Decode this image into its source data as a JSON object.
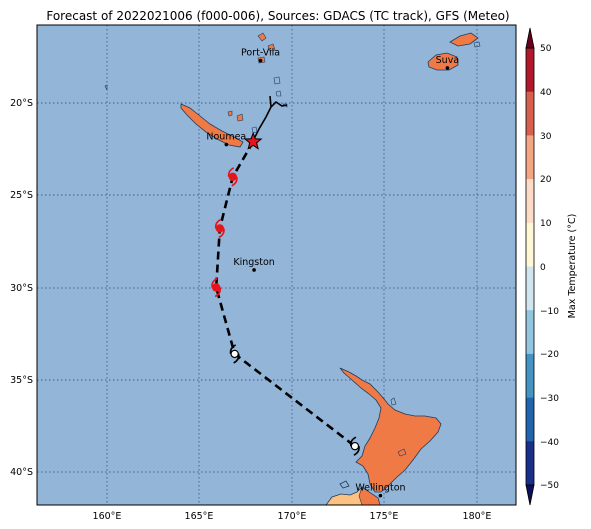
{
  "title": "Forecast of 2022021006 (f000-006), Sources: GDACS (TC track), GFS (Meteo)",
  "map": {
    "ocean_color": "#93b5d8",
    "land_hot_color": "#f07a45",
    "land_warm_color": "#fdc282",
    "track_color": "#000000",
    "storm_red": "#e8141b",
    "lon_ticks": [
      "160°E",
      "165°E",
      "170°E",
      "175°E",
      "180°E"
    ],
    "lat_ticks": [
      "20°S",
      "25°S",
      "30°S",
      "35°S",
      "40°S"
    ],
    "cities": [
      {
        "name": "Port-Vila",
        "lon": 168.3,
        "lat": -17.7
      },
      {
        "name": "Suva",
        "lon": 178.4,
        "lat": -18.1
      },
      {
        "name": "Noumea",
        "lon": 166.45,
        "lat": -22.25
      },
      {
        "name": "Kingston",
        "lon": 167.95,
        "lat": -29.05
      },
      {
        "name": "Wellington",
        "lon": 174.78,
        "lat": -41.28
      }
    ],
    "track": [
      {
        "lon": 167.9,
        "lat": -22.1,
        "symbol": "star"
      },
      {
        "lon": 166.8,
        "lat": -24.0,
        "symbol": "storm-red"
      },
      {
        "lon": 166.1,
        "lat": -26.8,
        "symbol": "storm-red"
      },
      {
        "lon": 165.9,
        "lat": -30.0,
        "symbol": "storm-red"
      },
      {
        "lon": 166.9,
        "lat": -33.6,
        "symbol": "storm-white"
      },
      {
        "lon": 173.4,
        "lat": -38.6,
        "symbol": "storm-white"
      }
    ]
  },
  "colorbar": {
    "label": "Max Temperature (°C)",
    "ticks": [
      "50",
      "40",
      "30",
      "20",
      "10",
      "0",
      "−10",
      "−20",
      "−30",
      "−40",
      "−50"
    ],
    "colors": [
      "#67001f",
      "#b2182b",
      "#d6604d",
      "#f4a582",
      "#fddbc7",
      "#fff7d6",
      "#d1e5f0",
      "#92c5de",
      "#4393c3",
      "#2166ac",
      "#1a2f8a",
      "#0b0f5c"
    ]
  }
}
